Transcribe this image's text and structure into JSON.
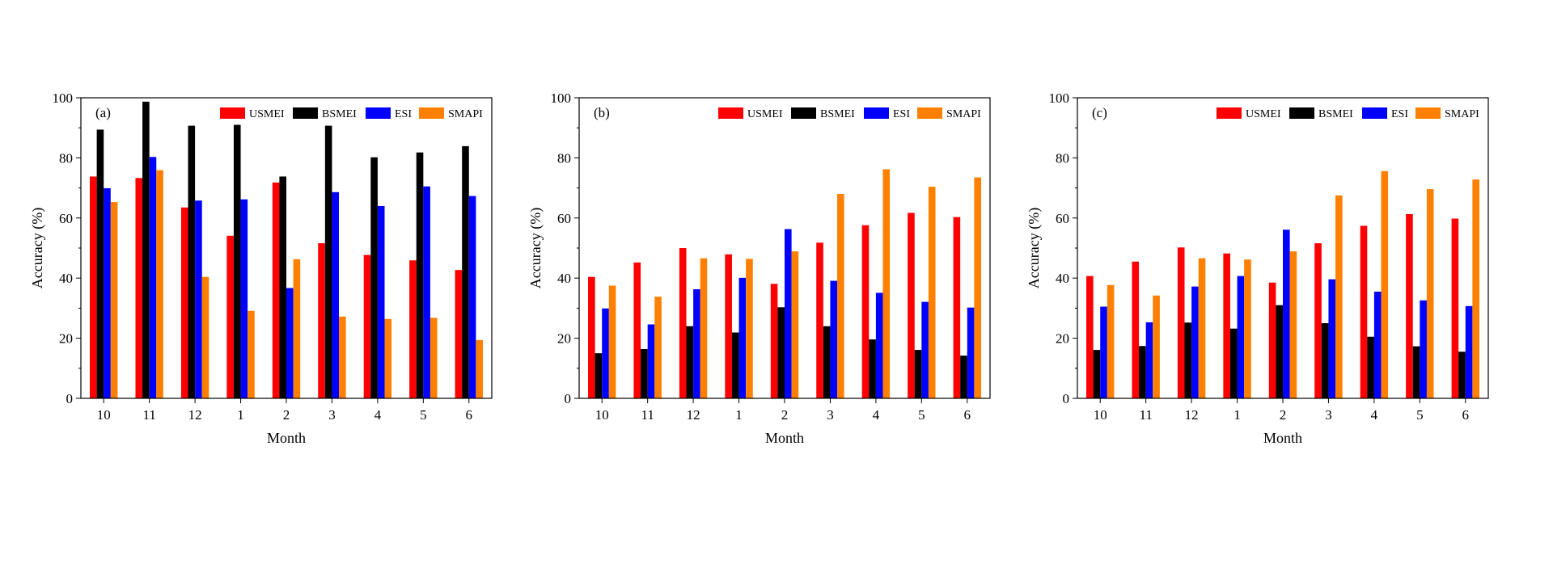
{
  "colors": {
    "USMEI": "#ff0000",
    "BSMEI": "#000000",
    "ESI": "#0000ff",
    "SMAPI": "#ff8000"
  },
  "chart_data": [
    {
      "type": "bar",
      "panel_label": "(a)",
      "xlabel": "Month",
      "ylabel": "Accuracy (%)",
      "ylim": [
        0,
        100
      ],
      "yticks": [
        "0",
        "20",
        "40",
        "60",
        "80",
        "100"
      ],
      "categories": [
        "10",
        "11",
        "12",
        "1",
        "2",
        "3",
        "4",
        "5",
        "6"
      ],
      "legend_position": "top-right",
      "series": [
        {
          "name": "USMEI",
          "values": [
            73.8,
            73.3,
            63.5,
            54.1,
            71.8,
            51.6,
            47.7,
            45.9,
            42.7
          ]
        },
        {
          "name": "BSMEI",
          "values": [
            89.4,
            98.7,
            90.7,
            91.0,
            73.8,
            90.7,
            80.2,
            81.8,
            83.9
          ]
        },
        {
          "name": "ESI",
          "values": [
            69.9,
            80.3,
            65.8,
            66.2,
            36.7,
            68.6,
            64.0,
            70.5,
            67.3
          ]
        },
        {
          "name": "SMAPI",
          "values": [
            65.3,
            75.9,
            40.4,
            29.1,
            46.3,
            27.2,
            26.4,
            26.8,
            19.4
          ]
        }
      ]
    },
    {
      "type": "bar",
      "panel_label": "(b)",
      "xlabel": "Month",
      "ylabel": "Accuracy (%)",
      "ylim": [
        0,
        100
      ],
      "yticks": [
        "0",
        "20",
        "40",
        "60",
        "80",
        "100"
      ],
      "categories": [
        "10",
        "11",
        "12",
        "1",
        "2",
        "3",
        "4",
        "5",
        "6"
      ],
      "legend_position": "top-right",
      "series": [
        {
          "name": "USMEI",
          "values": [
            40.4,
            45.2,
            50.0,
            47.9,
            38.1,
            51.8,
            57.6,
            61.7,
            60.3
          ]
        },
        {
          "name": "BSMEI",
          "values": [
            15.0,
            16.4,
            24.0,
            21.9,
            30.3,
            24.0,
            19.6,
            16.1,
            14.2
          ]
        },
        {
          "name": "ESI",
          "values": [
            29.9,
            24.6,
            36.3,
            40.1,
            56.3,
            39.1,
            35.1,
            32.1,
            30.2
          ]
        },
        {
          "name": "SMAPI",
          "values": [
            37.5,
            33.8,
            46.6,
            46.4,
            48.9,
            68.0,
            76.2,
            70.4,
            73.5
          ]
        }
      ]
    },
    {
      "type": "bar",
      "panel_label": "(c)",
      "xlabel": "Month",
      "ylabel": "Accuracy (%)",
      "ylim": [
        0,
        100
      ],
      "yticks": [
        "0",
        "20",
        "40",
        "60",
        "80",
        "100"
      ],
      "categories": [
        "10",
        "11",
        "12",
        "1",
        "2",
        "3",
        "4",
        "5",
        "6"
      ],
      "legend_position": "top-right",
      "series": [
        {
          "name": "USMEI",
          "values": [
            40.7,
            45.5,
            50.2,
            48.2,
            38.5,
            51.6,
            57.4,
            61.3,
            59.8
          ]
        },
        {
          "name": "BSMEI",
          "values": [
            16.1,
            17.4,
            25.2,
            23.2,
            31.0,
            25.0,
            20.5,
            17.3,
            15.5
          ]
        },
        {
          "name": "ESI",
          "values": [
            30.5,
            25.3,
            37.2,
            40.7,
            56.1,
            39.6,
            35.5,
            32.6,
            30.7
          ]
        },
        {
          "name": "SMAPI",
          "values": [
            37.7,
            34.2,
            46.6,
            46.2,
            48.9,
            67.5,
            75.6,
            69.6,
            72.8
          ]
        }
      ]
    }
  ]
}
